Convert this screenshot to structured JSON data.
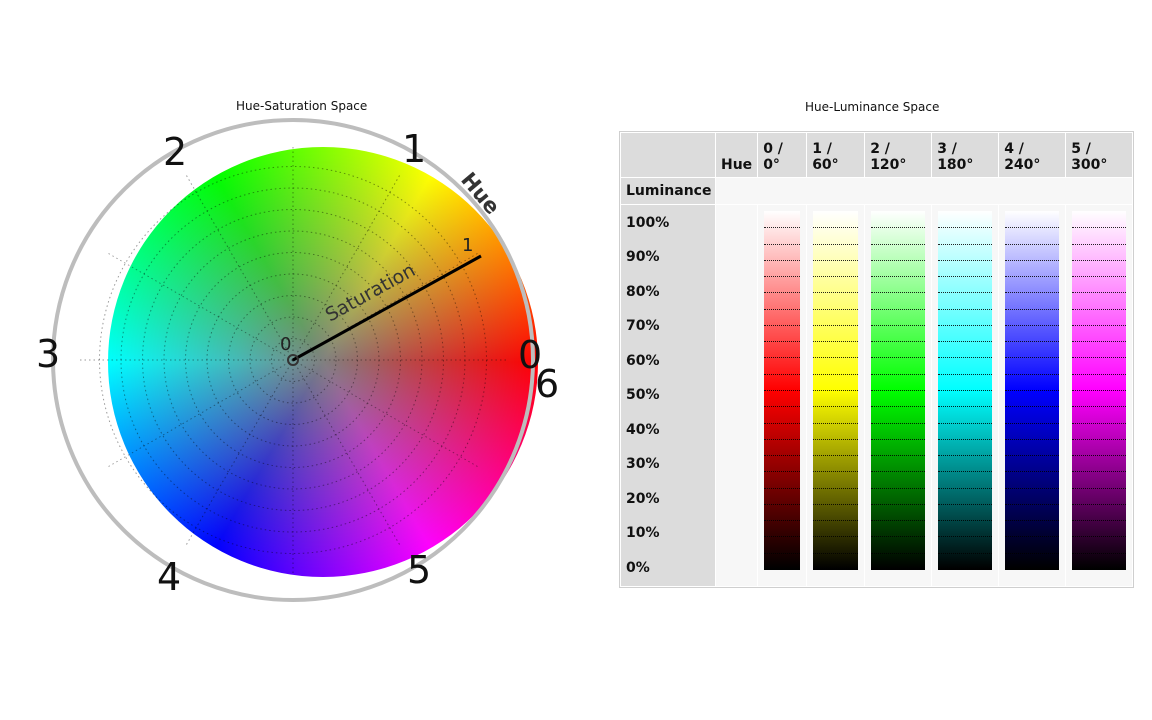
{
  "hue_saturation": {
    "caption": "Hue-Saturation Space",
    "hue_numbers": [
      "0",
      "1",
      "2",
      "3",
      "4",
      "5",
      "6"
    ],
    "label_hue": "Hue",
    "label_saturation": "Saturation",
    "sat_zero": "0",
    "sat_one": "1"
  },
  "hue_luminance": {
    "caption": "Hue-Luminance Space",
    "corner_hue": "Hue",
    "luminance_label": "Luminance",
    "columns": [
      {
        "line1": "0 /",
        "line2": "0°",
        "color": "#ff0000"
      },
      {
        "line1": "1 /",
        "line2": "60°",
        "color": "#ffff00"
      },
      {
        "line1": "",
        "line2": "2 / 120°",
        "color": "#00ff00"
      },
      {
        "line1": "",
        "line2": "3 / 180°",
        "color": "#00ffff"
      },
      {
        "line1": "",
        "line2": "4 / 240°",
        "color": "#0000ff"
      },
      {
        "line1": "",
        "line2": "5 / 300°",
        "color": "#ff00ff"
      }
    ],
    "rows": [
      "100%",
      "90%",
      "80%",
      "70%",
      "60%",
      "50%",
      "40%",
      "30%",
      "20%",
      "10%",
      "0%"
    ]
  }
}
